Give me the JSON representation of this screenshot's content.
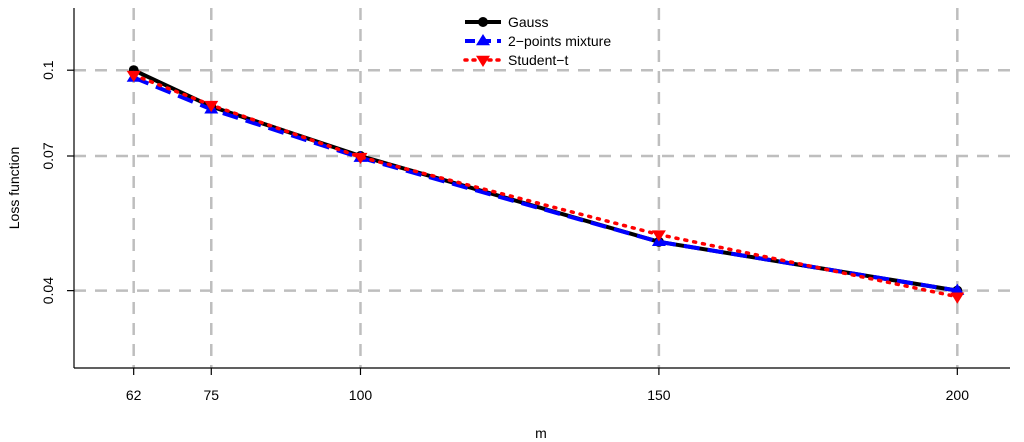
{
  "chart_data": {
    "type": "line",
    "xlabel": "m",
    "ylabel": "Loss function",
    "x": [
      62,
      75,
      100,
      150,
      200
    ],
    "x_ticks": [
      "62",
      "75",
      "100",
      "150",
      "200"
    ],
    "y_ticks": [
      "0.04",
      "0.07",
      "0.1"
    ],
    "y_tick_values": [
      0.04,
      0.07,
      0.1
    ],
    "xlim": [
      52,
      210
    ],
    "ylim": [
      0.029,
      0.1295
    ],
    "log_y": true,
    "grid": true,
    "legend_position": "top-center",
    "series": [
      {
        "name": "Gauss",
        "values": [
          0.1,
          0.086,
          0.07,
          0.049,
          0.04
        ],
        "color": "#000000",
        "dash": "solid",
        "marker": "circle"
      },
      {
        "name": "2−points mixture",
        "values": [
          0.097,
          0.085,
          0.0695,
          0.049,
          0.04
        ],
        "color": "#0000ff",
        "dash": "dashed",
        "marker": "triangle-up"
      },
      {
        "name": "Student−t",
        "values": [
          0.098,
          0.0865,
          0.0697,
          0.0505,
          0.039
        ],
        "color": "#ff0000",
        "dash": "dotted",
        "marker": "triangle-down"
      }
    ]
  }
}
